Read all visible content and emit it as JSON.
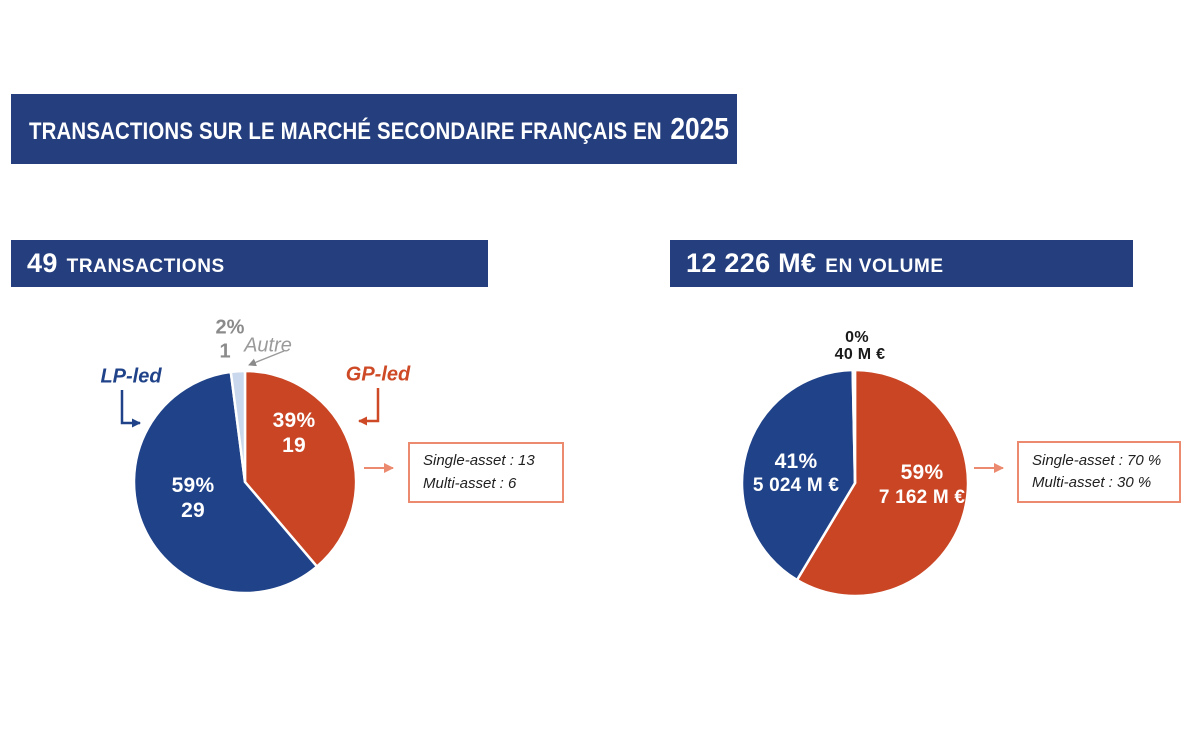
{
  "title_banner": {
    "text": "TRANSACTIONS SUR LE MARCHÉ SECONDAIRE FRANÇAIS EN",
    "year": "2025"
  },
  "colors": {
    "banner_navy": "#243E7E",
    "pie_blue": "#1F4289",
    "pie_orange": "#C94524",
    "pie_light_blue": "#C9D8EC",
    "salmon_accent": "#EC8A70",
    "gray_label": "#8B8B8B"
  },
  "left_chart": {
    "header_count": "49",
    "header_label": "TRANSACTIONS",
    "autre_pct": "2%",
    "autre_count": "1",
    "autre_label": "Autre",
    "lp_label": "LP-led",
    "gp_label": "GP-led",
    "gp_pct": "39%",
    "gp_count": "19",
    "lp_pct": "59%",
    "lp_count": "29",
    "callout_line1": "Single-asset : 13",
    "callout_line2": "Multi-asset : 6"
  },
  "right_chart": {
    "header_amount": "12 226 M€",
    "header_label": "EN VOLUME",
    "autre_pct": "0%",
    "autre_amount": "40 M €",
    "lp_pct": "41%",
    "lp_amount": "5 024 M €",
    "gp_pct": "59%",
    "gp_amount": "7 162 M €",
    "callout_line1": "Single-asset : 70 %",
    "callout_line2": "Multi-asset : 30 %"
  },
  "chart_data": [
    {
      "type": "pie",
      "title": "49 transactions",
      "unit": "transactions",
      "labels": [
        "GP-led",
        "LP-led",
        "Autre"
      ],
      "values": [
        19,
        29,
        1
      ],
      "percent_labels": [
        "39%",
        "59%",
        "2%"
      ],
      "colors": [
        "#C94524",
        "#1F4289",
        "#C9D8EC"
      ],
      "start_angle": 0,
      "direction": "clockwise",
      "annotations": [
        "Single-asset : 13",
        "Multi-asset : 6"
      ]
    },
    {
      "type": "pie",
      "title": "12 226 M€ en volume",
      "unit": "M€",
      "labels": [
        "GP-led",
        "LP-led",
        "Autre"
      ],
      "values": [
        7162,
        5024,
        40
      ],
      "percent_labels": [
        "59%",
        "41%",
        "0%"
      ],
      "colors": [
        "#C94524",
        "#1F4289",
        "#C9D8EC"
      ],
      "start_angle": 0,
      "direction": "clockwise",
      "annotations": [
        "Single-asset : 70 %",
        "Multi-asset : 30 %"
      ]
    }
  ]
}
